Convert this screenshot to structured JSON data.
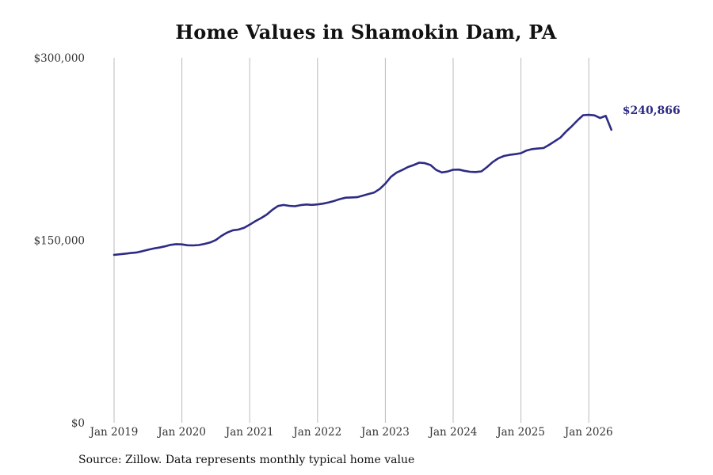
{
  "chart_data": {
    "type": "line",
    "title": "Home Values in Shamokin Dam, PA",
    "xlabel": "",
    "ylabel": "",
    "ylim": [
      0,
      300000
    ],
    "y_ticks": [
      {
        "value": 0,
        "label": "$0"
      },
      {
        "value": 150000,
        "label": "$150,000"
      },
      {
        "value": 300000,
        "label": "$300,000"
      }
    ],
    "x_ticks": [
      "Jan 2019",
      "Jan 2020",
      "Jan 2021",
      "Jan 2022",
      "Jan 2023",
      "Jan 2024",
      "Jan 2025",
      "Jan 2026"
    ],
    "x_range": [
      "2019-01",
      "2026-05"
    ],
    "grid": "vertical",
    "line_color": "#2e2b84",
    "grid_color": "#bbbbbb",
    "series": [
      {
        "x": [
          "2019-01",
          "2019-02",
          "2019-03",
          "2019-04",
          "2019-05",
          "2019-06",
          "2019-07",
          "2019-08",
          "2019-09",
          "2019-10",
          "2019-11",
          "2019-12",
          "2020-01",
          "2020-02",
          "2020-03",
          "2020-04",
          "2020-05",
          "2020-06",
          "2020-07",
          "2020-08",
          "2020-09",
          "2020-10",
          "2020-11",
          "2020-12",
          "2021-01",
          "2021-02",
          "2021-03",
          "2021-04",
          "2021-05",
          "2021-06",
          "2021-07",
          "2021-08",
          "2021-09",
          "2021-10",
          "2021-11",
          "2021-12",
          "2022-01",
          "2022-02",
          "2022-03",
          "2022-04",
          "2022-05",
          "2022-06",
          "2022-07",
          "2022-08",
          "2022-09",
          "2022-10",
          "2022-11",
          "2022-12",
          "2023-01",
          "2023-02",
          "2023-03",
          "2023-04",
          "2023-05",
          "2023-06",
          "2023-07",
          "2023-08",
          "2023-09",
          "2023-10",
          "2023-11",
          "2023-12",
          "2024-01",
          "2024-02",
          "2024-03",
          "2024-04",
          "2024-05",
          "2024-06",
          "2024-07",
          "2024-08",
          "2024-09",
          "2024-10",
          "2024-11",
          "2024-12",
          "2025-01",
          "2025-02",
          "2025-03",
          "2025-04",
          "2025-05",
          "2025-06",
          "2025-07",
          "2025-08",
          "2025-09",
          "2025-10",
          "2025-11",
          "2025-12",
          "2026-01",
          "2026-02",
          "2026-03",
          "2026-04",
          "2026-05"
        ],
        "values": [
          138000,
          138500,
          139000,
          139500,
          140000,
          141000,
          142200,
          143200,
          144000,
          145000,
          146200,
          146800,
          146600,
          145900,
          145800,
          146100,
          147000,
          148200,
          150200,
          153600,
          156300,
          158200,
          158800,
          160200,
          162800,
          165700,
          168200,
          171100,
          175000,
          178200,
          179000,
          178300,
          178000,
          178900,
          179400,
          179100,
          179500,
          180100,
          181200,
          182400,
          183900,
          185000,
          185200,
          185400,
          186700,
          188000,
          189200,
          192200,
          196600,
          202200,
          205700,
          207800,
          210200,
          211800,
          213800,
          213400,
          211800,
          207800,
          205800,
          206500,
          208000,
          208100,
          207100,
          206300,
          206100,
          206600,
          210200,
          214300,
          217400,
          219300,
          220200,
          220800,
          221600,
          223800,
          225000,
          225400,
          225800,
          228500,
          231500,
          234500,
          239500,
          243800,
          248500,
          252800,
          253100,
          252700,
          250500,
          252300,
          240866
        ]
      }
    ],
    "last_value_label": "$240,866",
    "source": "Source: Zillow. Data represents monthly typical home value"
  }
}
